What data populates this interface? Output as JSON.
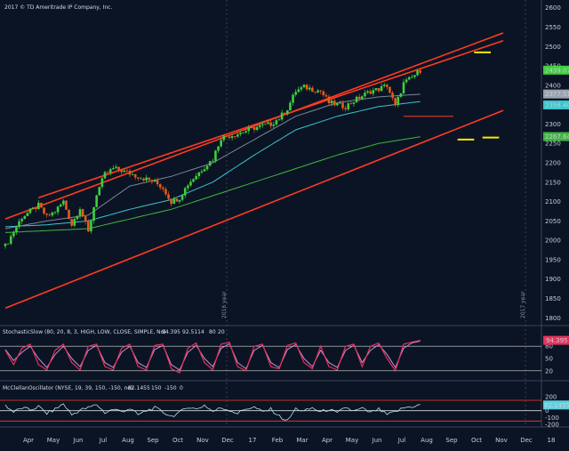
{
  "header": {
    "copyright": "2017 © TD Ameritrade IP Company, Inc."
  },
  "colors": {
    "background": "#0b1424",
    "candle_up": "#3ecf3e",
    "candle_down": "#e85a1a",
    "channel": "#ff3b22",
    "ma_fast": "#7c8694",
    "ma_mid": "#39c6d0",
    "ma_slow": "#41b641",
    "stoch_k": "#e8315a",
    "stoch_d": "#c68fd6",
    "mcclellan": "#aee8f0",
    "target": "#ffe800"
  },
  "chart_data": [
    {
      "type": "candlestick",
      "name": "price",
      "x_labels": [
        "Apr",
        "May",
        "Jun",
        "Jul",
        "Aug",
        "Sep",
        "Oct",
        "Nov",
        "Dec",
        "17",
        "Feb",
        "Mar",
        "Apr",
        "May",
        "Jun",
        "Jul",
        "Aug",
        "Sep",
        "Oct",
        "Nov",
        "Dec",
        "18"
      ],
      "y_ticks": [
        1800,
        1850,
        1900,
        1950,
        2000,
        2050,
        2100,
        2150,
        2200,
        2250,
        2300,
        2350,
        2400,
        2450,
        2500,
        2550,
        2600
      ],
      "ylim": [
        1780,
        2620
      ],
      "year_labels": [
        "2016 year",
        "2017 year"
      ],
      "close_path": [
        [
          0,
          1985
        ],
        [
          2,
          2060
        ],
        [
          4,
          2090
        ],
        [
          5,
          2060
        ],
        [
          6,
          2075
        ],
        [
          7,
          2100
        ],
        [
          8,
          2040
        ],
        [
          9,
          2085
        ],
        [
          10,
          2020
        ],
        [
          11,
          2120
        ],
        [
          12,
          2170
        ],
        [
          13,
          2185
        ],
        [
          14,
          2180
        ],
        [
          16,
          2165
        ],
        [
          18,
          2150
        ],
        [
          19,
          2135
        ],
        [
          20,
          2100
        ],
        [
          21,
          2110
        ],
        [
          22,
          2145
        ],
        [
          24,
          2190
        ],
        [
          25,
          2210
        ],
        [
          26,
          2265
        ],
        [
          28,
          2275
        ],
        [
          30,
          2290
        ],
        [
          32,
          2300
        ],
        [
          33,
          2315
        ],
        [
          34,
          2340
        ],
        [
          35,
          2385
        ],
        [
          36,
          2395
        ],
        [
          37,
          2390
        ],
        [
          38,
          2385
        ],
        [
          39,
          2355
        ],
        [
          40,
          2350
        ],
        [
          41,
          2345
        ],
        [
          42,
          2360
        ],
        [
          44,
          2385
        ],
        [
          45,
          2390
        ],
        [
          46,
          2400
        ],
        [
          47,
          2345
        ],
        [
          48,
          2405
        ],
        [
          49,
          2420
        ],
        [
          50,
          2439
        ]
      ],
      "ma_fast_path": [
        [
          0,
          2030
        ],
        [
          5,
          2050
        ],
        [
          10,
          2065
        ],
        [
          15,
          2140
        ],
        [
          20,
          2165
        ],
        [
          25,
          2200
        ],
        [
          30,
          2260
        ],
        [
          35,
          2320
        ],
        [
          40,
          2355
        ],
        [
          45,
          2370
        ],
        [
          50,
          2377
        ]
      ],
      "ma_mid_path": [
        [
          0,
          2035
        ],
        [
          5,
          2040
        ],
        [
          10,
          2050
        ],
        [
          15,
          2080
        ],
        [
          20,
          2105
        ],
        [
          25,
          2150
        ],
        [
          30,
          2220
        ],
        [
          35,
          2285
        ],
        [
          40,
          2320
        ],
        [
          45,
          2345
        ],
        [
          50,
          2358
        ]
      ],
      "ma_slow_path": [
        [
          0,
          2020
        ],
        [
          10,
          2030
        ],
        [
          20,
          2080
        ],
        [
          30,
          2150
        ],
        [
          40,
          2220
        ],
        [
          45,
          2250
        ],
        [
          50,
          2267
        ]
      ],
      "channel_upper_path": [
        [
          0,
          2055
        ],
        [
          60,
          2535
        ]
      ],
      "channel_upper2_path": [
        [
          4,
          2110
        ],
        [
          60,
          2515
        ]
      ],
      "channel_lower_path": [
        [
          0,
          1825
        ],
        [
          60,
          2335
        ]
      ],
      "support_line": {
        "x": [
          48,
          54
        ],
        "y": 2320
      },
      "target_marks": [
        {
          "x": [
            56.5,
            58.5
          ],
          "y": 2485
        },
        {
          "x": [
            54.5,
            56.5
          ],
          "y": 2260
        },
        {
          "x": [
            57.5,
            59.5
          ],
          "y": 2265
        }
      ],
      "price_badges": [
        {
          "value": "2439.07",
          "role": "candle_up"
        },
        {
          "value": "2377.51",
          "role": "ma_fast"
        },
        {
          "value": "2358.40",
          "role": "ma_mid"
        },
        {
          "value": "2267.64",
          "role": "ma_slow"
        }
      ]
    },
    {
      "type": "line",
      "name": "stochastic",
      "title": "StochasticSlow (80, 20, 8, 3, HIGH, LOW, CLOSE, SIMPLE, No)",
      "legend_values": [
        "94.395",
        "92.5114",
        "80",
        "20"
      ],
      "y_ticks": [
        20,
        50,
        80
      ],
      "ylim": [
        0,
        100
      ],
      "levels": [
        20,
        80
      ],
      "k_path": [
        [
          0,
          70
        ],
        [
          1,
          35
        ],
        [
          2,
          75
        ],
        [
          3,
          85
        ],
        [
          4,
          35
        ],
        [
          5,
          22
        ],
        [
          6,
          70
        ],
        [
          7,
          85
        ],
        [
          8,
          40
        ],
        [
          9,
          22
        ],
        [
          10,
          80
        ],
        [
          11,
          85
        ],
        [
          12,
          30
        ],
        [
          13,
          22
        ],
        [
          14,
          75
        ],
        [
          15,
          85
        ],
        [
          16,
          30
        ],
        [
          17,
          22
        ],
        [
          18,
          82
        ],
        [
          19,
          85
        ],
        [
          20,
          25
        ],
        [
          21,
          15
        ],
        [
          22,
          75
        ],
        [
          23,
          88
        ],
        [
          24,
          40
        ],
        [
          25,
          22
        ],
        [
          26,
          85
        ],
        [
          27,
          90
        ],
        [
          28,
          30
        ],
        [
          29,
          20
        ],
        [
          30,
          80
        ],
        [
          31,
          85
        ],
        [
          32,
          30
        ],
        [
          33,
          25
        ],
        [
          34,
          82
        ],
        [
          35,
          88
        ],
        [
          36,
          40
        ],
        [
          37,
          25
        ],
        [
          38,
          80
        ],
        [
          39,
          30
        ],
        [
          40,
          22
        ],
        [
          41,
          80
        ],
        [
          42,
          85
        ],
        [
          43,
          30
        ],
        [
          44,
          80
        ],
        [
          45,
          88
        ],
        [
          46,
          50
        ],
        [
          47,
          20
        ],
        [
          48,
          85
        ],
        [
          49,
          90
        ],
        [
          50,
          94.4
        ]
      ],
      "d_path": [
        [
          0,
          72
        ],
        [
          1,
          45
        ],
        [
          2,
          65
        ],
        [
          3,
          80
        ],
        [
          4,
          50
        ],
        [
          5,
          28
        ],
        [
          6,
          60
        ],
        [
          7,
          80
        ],
        [
          8,
          50
        ],
        [
          9,
          30
        ],
        [
          10,
          70
        ],
        [
          11,
          82
        ],
        [
          12,
          40
        ],
        [
          13,
          28
        ],
        [
          14,
          65
        ],
        [
          15,
          80
        ],
        [
          16,
          40
        ],
        [
          17,
          28
        ],
        [
          18,
          72
        ],
        [
          19,
          82
        ],
        [
          20,
          35
        ],
        [
          21,
          22
        ],
        [
          22,
          65
        ],
        [
          23,
          82
        ],
        [
          24,
          50
        ],
        [
          25,
          30
        ],
        [
          26,
          75
        ],
        [
          27,
          86
        ],
        [
          28,
          40
        ],
        [
          29,
          25
        ],
        [
          30,
          70
        ],
        [
          31,
          82
        ],
        [
          32,
          40
        ],
        [
          33,
          28
        ],
        [
          34,
          72
        ],
        [
          35,
          84
        ],
        [
          36,
          50
        ],
        [
          37,
          30
        ],
        [
          38,
          70
        ],
        [
          39,
          40
        ],
        [
          40,
          28
        ],
        [
          41,
          70
        ],
        [
          42,
          82
        ],
        [
          43,
          40
        ],
        [
          44,
          70
        ],
        [
          45,
          84
        ],
        [
          46,
          60
        ],
        [
          47,
          28
        ],
        [
          48,
          75
        ],
        [
          49,
          88
        ],
        [
          50,
          92.5
        ]
      ]
    },
    {
      "type": "line",
      "name": "mcclellan",
      "title": "McClellanOscillator (NYSE, 19, 39, 150, -150, no)",
      "legend_values": [
        "82.1455",
        "150",
        "-150",
        "0"
      ],
      "y_ticks": [
        -200,
        -100,
        0,
        100,
        200
      ],
      "ylim": [
        -210,
        240
      ],
      "levels": [
        -150,
        0,
        150
      ],
      "value_badge": "82.1455",
      "path": [
        [
          0,
          80
        ],
        [
          1,
          -20
        ],
        [
          2,
          40
        ],
        [
          3,
          10
        ],
        [
          4,
          60
        ],
        [
          5,
          -40
        ],
        [
          6,
          20
        ],
        [
          7,
          100
        ],
        [
          8,
          -60
        ],
        [
          9,
          10
        ],
        [
          10,
          40
        ],
        [
          11,
          90
        ],
        [
          12,
          -30
        ],
        [
          13,
          20
        ],
        [
          14,
          -10
        ],
        [
          15,
          30
        ],
        [
          16,
          -60
        ],
        [
          17,
          0
        ],
        [
          18,
          40
        ],
        [
          19,
          -20
        ],
        [
          20,
          -80
        ],
        [
          21,
          -30
        ],
        [
          22,
          60
        ],
        [
          23,
          20
        ],
        [
          24,
          80
        ],
        [
          25,
          -10
        ],
        [
          26,
          40
        ],
        [
          27,
          10
        ],
        [
          28,
          -40
        ],
        [
          29,
          30
        ],
        [
          30,
          50
        ],
        [
          31,
          -20
        ],
        [
          32,
          20
        ],
        [
          33,
          -80
        ],
        [
          34,
          -150
        ],
        [
          35,
          30
        ],
        [
          36,
          -10
        ],
        [
          37,
          40
        ],
        [
          38,
          -20
        ],
        [
          39,
          20
        ],
        [
          40,
          -40
        ],
        [
          41,
          50
        ],
        [
          42,
          -10
        ],
        [
          43,
          30
        ],
        [
          44,
          -30
        ],
        [
          45,
          20
        ],
        [
          46,
          -60
        ],
        [
          47,
          -20
        ],
        [
          48,
          40
        ],
        [
          49,
          60
        ],
        [
          50,
          82.1
        ]
      ]
    }
  ]
}
